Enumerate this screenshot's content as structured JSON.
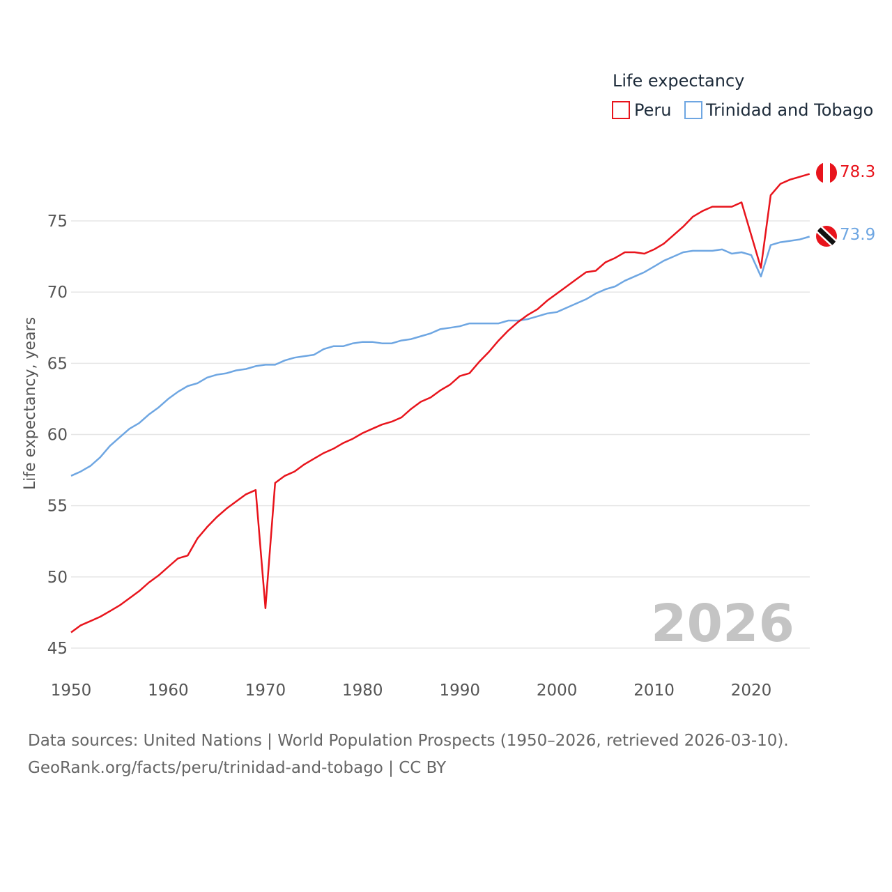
{
  "colors": {
    "peru": "#e8141c",
    "trinidad": "#6ea6e2",
    "grid": "#e6e6e6",
    "big_year": "#c4c4c4"
  },
  "legend": {
    "title": "Life expectancy",
    "items": [
      {
        "label": "Peru",
        "color": "#e8141c"
      },
      {
        "label": "Trinidad and Tobago",
        "color": "#6ea6e2"
      }
    ]
  },
  "current_year": "2026",
  "end_labels": {
    "peru": "78.3",
    "trinidad": "73.9"
  },
  "flags": {
    "peru": "peru-flag-icon",
    "trinidad": "trinidad-flag-icon"
  },
  "source": {
    "line1": "Data sources: United Nations | World Population Prospects (1950–2026, retrieved 2026-03-10).",
    "line2": "GeoRank.org/facts/peru/trinidad-and-tobago | CC BY"
  },
  "chart_data": {
    "type": "line",
    "title": "Life expectancy",
    "xlabel": "",
    "ylabel": "Life expectancy, years",
    "xlim": [
      1950,
      2026
    ],
    "ylim": [
      45,
      78.5
    ],
    "yticks": [
      45,
      50,
      55,
      60,
      65,
      70,
      75
    ],
    "xticks": [
      1950,
      1960,
      1970,
      1980,
      1990,
      2000,
      2010,
      2020
    ],
    "x": [
      1950,
      1951,
      1952,
      1953,
      1954,
      1955,
      1956,
      1957,
      1958,
      1959,
      1960,
      1961,
      1962,
      1963,
      1964,
      1965,
      1966,
      1967,
      1968,
      1969,
      1970,
      1971,
      1972,
      1973,
      1974,
      1975,
      1976,
      1977,
      1978,
      1979,
      1980,
      1981,
      1982,
      1983,
      1984,
      1985,
      1986,
      1987,
      1988,
      1989,
      1990,
      1991,
      1992,
      1993,
      1994,
      1995,
      1996,
      1997,
      1998,
      1999,
      2000,
      2001,
      2002,
      2003,
      2004,
      2005,
      2006,
      2007,
      2008,
      2009,
      2010,
      2011,
      2012,
      2013,
      2014,
      2015,
      2016,
      2017,
      2018,
      2019,
      2020,
      2021,
      2022,
      2023,
      2024,
      2025,
      2026
    ],
    "series": [
      {
        "name": "Peru",
        "values": [
          46.1,
          46.6,
          46.9,
          47.2,
          47.6,
          48.0,
          48.5,
          49.0,
          49.6,
          50.1,
          50.7,
          51.3,
          51.5,
          52.7,
          53.5,
          54.2,
          54.8,
          55.3,
          55.8,
          56.1,
          47.8,
          56.6,
          57.1,
          57.4,
          57.9,
          58.3,
          58.7,
          59.0,
          59.4,
          59.7,
          60.1,
          60.4,
          60.7,
          60.9,
          61.2,
          61.8,
          62.3,
          62.6,
          63.1,
          63.5,
          64.1,
          64.3,
          65.1,
          65.8,
          66.6,
          67.3,
          67.9,
          68.4,
          68.8,
          69.4,
          69.9,
          70.4,
          70.9,
          71.4,
          71.5,
          72.1,
          72.4,
          72.8,
          72.8,
          72.7,
          73.0,
          73.4,
          74.0,
          74.6,
          75.3,
          75.7,
          76.0,
          76.0,
          76.0,
          76.3,
          74.0,
          71.7,
          76.8,
          77.6,
          77.9,
          78.1,
          78.3
        ]
      },
      {
        "name": "Trinidad and Tobago",
        "values": [
          57.1,
          57.4,
          57.8,
          58.4,
          59.2,
          59.8,
          60.4,
          60.8,
          61.4,
          61.9,
          62.5,
          63.0,
          63.4,
          63.6,
          64.0,
          64.2,
          64.3,
          64.5,
          64.6,
          64.8,
          64.9,
          64.9,
          65.2,
          65.4,
          65.5,
          65.6,
          66.0,
          66.2,
          66.2,
          66.4,
          66.5,
          66.5,
          66.4,
          66.4,
          66.6,
          66.7,
          66.9,
          67.1,
          67.4,
          67.5,
          67.6,
          67.8,
          67.8,
          67.8,
          67.8,
          68.0,
          68.0,
          68.1,
          68.3,
          68.5,
          68.6,
          68.9,
          69.2,
          69.5,
          69.9,
          70.2,
          70.4,
          70.8,
          71.1,
          71.4,
          71.8,
          72.2,
          72.5,
          72.8,
          72.9,
          72.9,
          72.9,
          73.0,
          72.7,
          72.8,
          72.6,
          71.1,
          73.3,
          73.5,
          73.6,
          73.7,
          73.9
        ]
      }
    ]
  }
}
